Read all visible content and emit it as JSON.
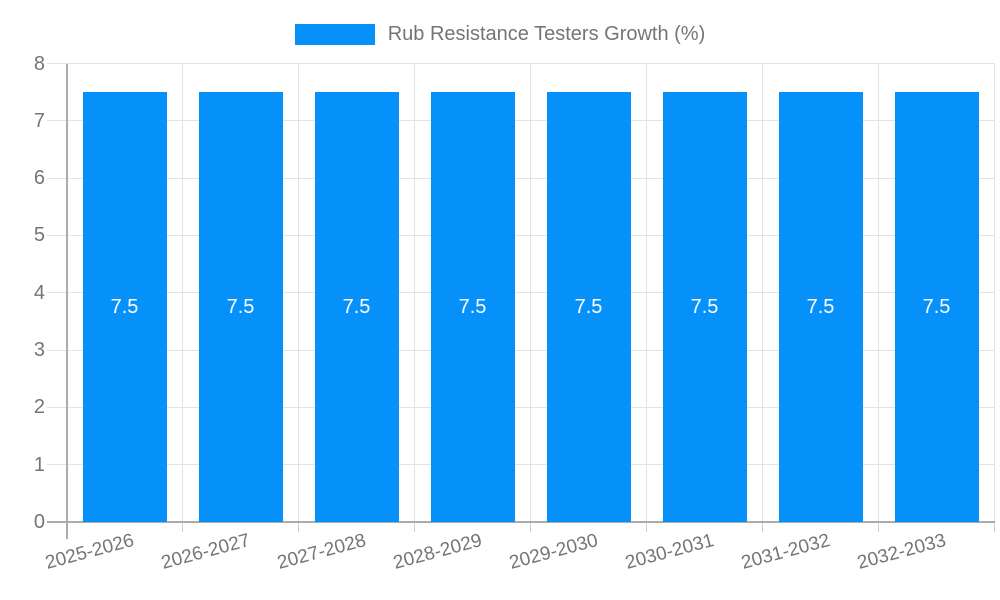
{
  "chart_data": {
    "type": "bar",
    "legend": "Rub Resistance Testers Growth (%)",
    "legend_position": "top-center",
    "categories": [
      "2025-2026",
      "2026-2027",
      "2027-2028",
      "2028-2029",
      "2029-2030",
      "2030-2031",
      "2031-2032",
      "2032-2033"
    ],
    "values": [
      7.5,
      7.5,
      7.5,
      7.5,
      7.5,
      7.5,
      7.5,
      7.5
    ],
    "value_labels": [
      "7.5",
      "7.5",
      "7.5",
      "7.5",
      "7.5",
      "7.5",
      "7.5",
      "7.5"
    ],
    "ylim": [
      0,
      8
    ],
    "yticks": [
      0,
      1,
      2,
      3,
      4,
      5,
      6,
      7,
      8
    ],
    "grid": true,
    "x_label_rotation_deg": -15,
    "colors": {
      "bar": "#0590fa",
      "value_label": "#ffffff",
      "axis_text": "#757575",
      "gridline": "#e3e3e3",
      "tick": "#cfcfcf",
      "axis_line": "#ababab",
      "background": "#ffffff"
    }
  }
}
